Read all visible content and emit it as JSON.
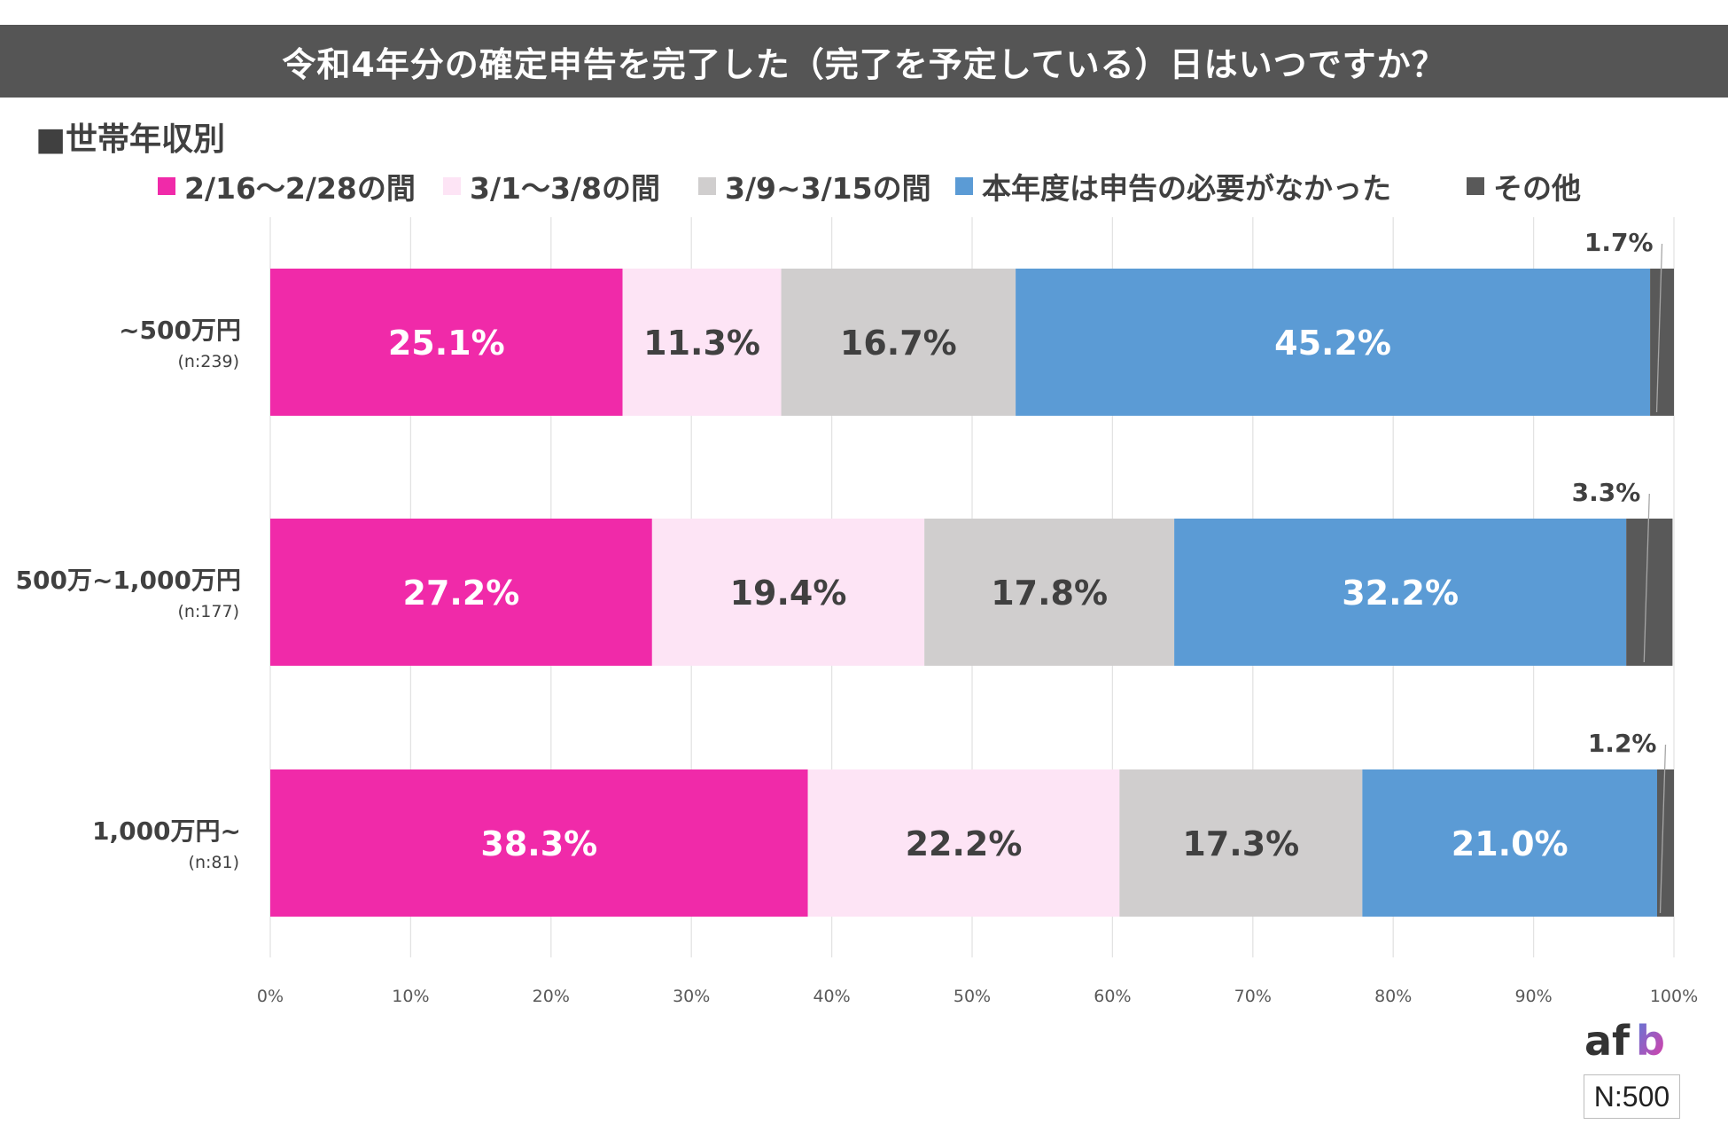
{
  "title": "令和4年分の確定申告を完了した（完了を予定している）日はいつですか？",
  "subtitle": "■世帯年収別",
  "footer": {
    "logo_text": "afb",
    "sample_size": "N:500"
  },
  "chart_data": {
    "type": "bar",
    "orientation": "horizontal",
    "stacked": true,
    "normalized_percent": true,
    "title": "令和4年分の確定申告を完了した（完了を予定している）日はいつですか？",
    "legend_position": "top",
    "categories": [
      {
        "label": "~500万円",
        "n": "(n:239)"
      },
      {
        "label": "500万~1,000万円",
        "n": "(n:177)"
      },
      {
        "label": "1,000万円~",
        "n": "(n:81)"
      }
    ],
    "series": [
      {
        "name": "2/16〜2/28の間",
        "color": "#f02aa9",
        "label_color": "#ffffff",
        "values": [
          25.1,
          27.2,
          38.3
        ]
      },
      {
        "name": "3/1〜3/8の間",
        "color": "#fde4f5",
        "label_color": "#404040",
        "values": [
          11.3,
          19.4,
          22.2
        ]
      },
      {
        "name": "3/9~3/15の間",
        "color": "#d0cece",
        "label_color": "#404040",
        "values": [
          16.7,
          17.8,
          17.3
        ]
      },
      {
        "name": "本年度は申告の必要がなかった",
        "color": "#5b9bd5",
        "label_color": "#ffffff",
        "values": [
          45.2,
          32.2,
          21.0
        ]
      },
      {
        "name": "その他",
        "color": "#595959",
        "label_color": "#404040",
        "values": [
          1.7,
          3.3,
          1.2
        ]
      }
    ],
    "value_labels": [
      [
        "25.1%",
        "11.3%",
        "16.7%",
        "45.2%",
        "1.7%"
      ],
      [
        "27.2%",
        "19.4%",
        "17.8%",
        "32.2%",
        "3.3%"
      ],
      [
        "38.3%",
        "22.2%",
        "17.3%",
        "21.0%",
        "1.2%"
      ]
    ],
    "xlim": [
      0,
      100
    ],
    "xticks": [
      0,
      10,
      20,
      30,
      40,
      50,
      60,
      70,
      80,
      90,
      100
    ],
    "xtick_labels": [
      "0%",
      "10%",
      "20%",
      "30%",
      "40%",
      "50%",
      "60%",
      "70%",
      "80%",
      "90%",
      "100%"
    ],
    "grid": true
  }
}
